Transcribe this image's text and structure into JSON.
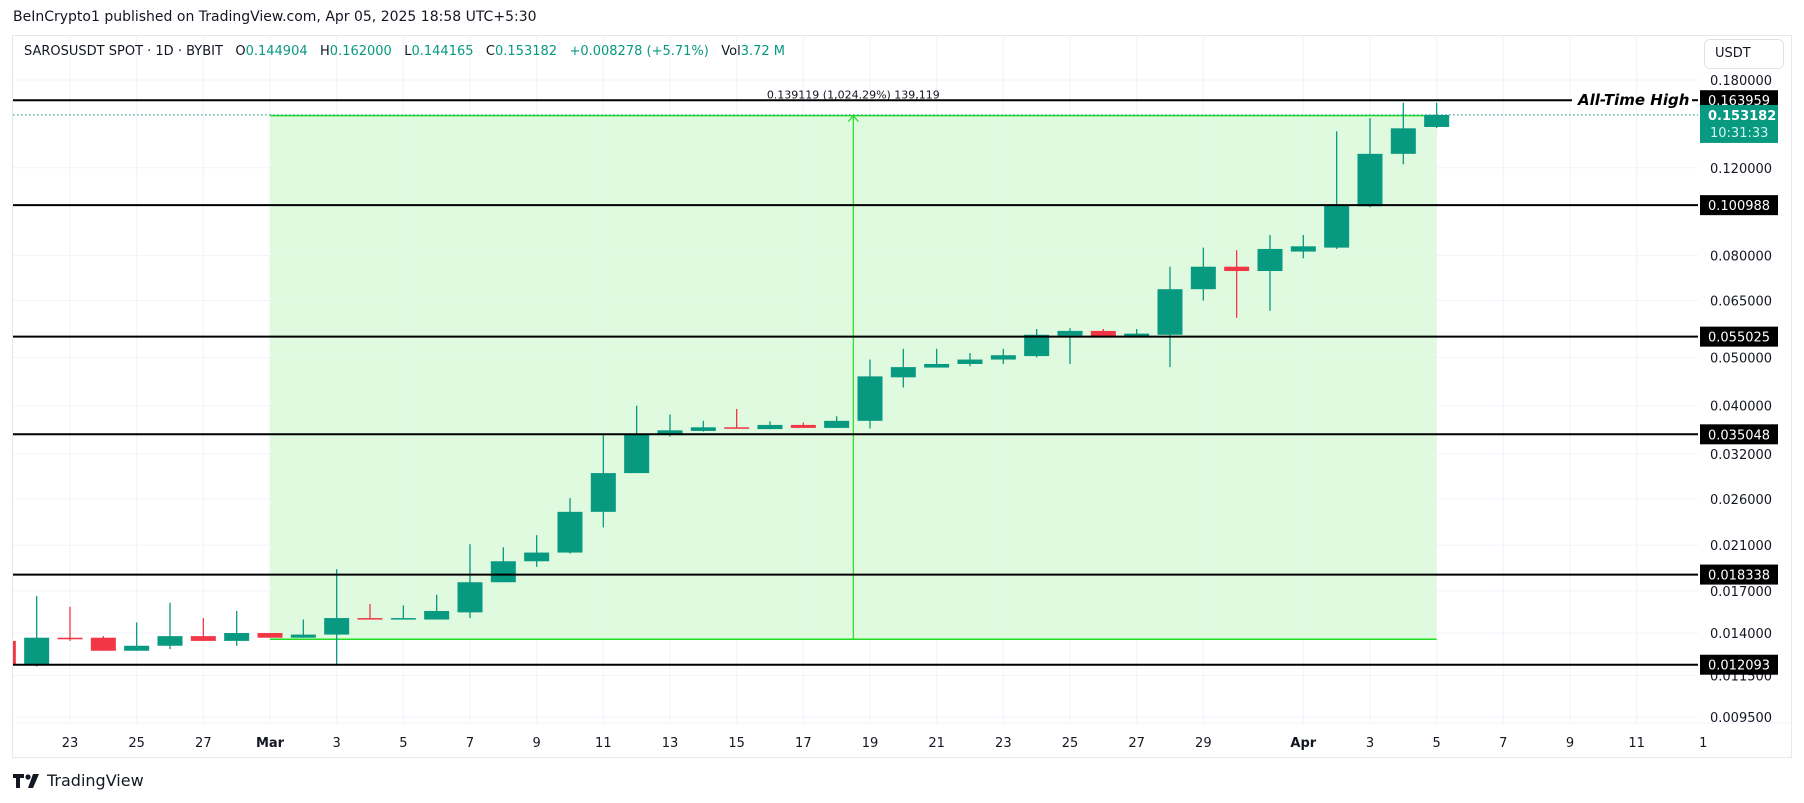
{
  "published": "BeInCrypto1 published on TradingView.com, Apr 05, 2025 18:58 UTC+5:30",
  "legend": {
    "symbol": "SAROSUSDT SPOT · 1D · BYBIT",
    "o_label": "O",
    "o": "0.144904",
    "h_label": "H",
    "h": "0.162000",
    "l_label": "L",
    "l": "0.144165",
    "c_label": "C",
    "c": "0.153182",
    "change": "+0.008278 (+5.71%)",
    "vol_label": "Vol",
    "vol": "3.72 M"
  },
  "currency_button": "USDT",
  "footer_logo": "TradingView",
  "colors": {
    "up": "#089981",
    "down": "#f23645",
    "range_fill": "#ddfadd",
    "range_line": "#22dd22",
    "level": "#000000"
  },
  "chart_data": {
    "type": "candlestick",
    "title": "SAROSUSDT SPOT · 1D · BYBIT",
    "yscale": "log",
    "ylim": [
      0.0095,
      0.18
    ],
    "y_ticks": [
      "0.180000",
      "0.120000",
      "0.080000",
      "0.065000",
      "0.050000",
      "0.040000",
      "0.032000",
      "0.026000",
      "0.021000",
      "0.017000",
      "0.014000",
      "0.011500",
      "0.009500"
    ],
    "x_ticks": [
      {
        "text": "23",
        "day": -6
      },
      {
        "text": "25",
        "day": -4
      },
      {
        "text": "27",
        "day": -2
      },
      {
        "text": "Mar",
        "day": 0,
        "bold": true
      },
      {
        "text": "3",
        "day": 2
      },
      {
        "text": "5",
        "day": 4
      },
      {
        "text": "7",
        "day": 6
      },
      {
        "text": "9",
        "day": 8
      },
      {
        "text": "11",
        "day": 10
      },
      {
        "text": "13",
        "day": 12
      },
      {
        "text": "15",
        "day": 14
      },
      {
        "text": "17",
        "day": 16
      },
      {
        "text": "19",
        "day": 18
      },
      {
        "text": "21",
        "day": 20
      },
      {
        "text": "23",
        "day": 22
      },
      {
        "text": "25",
        "day": 24
      },
      {
        "text": "27",
        "day": 26
      },
      {
        "text": "29",
        "day": 28
      },
      {
        "text": "Apr",
        "day": 31,
        "bold": true
      },
      {
        "text": "3",
        "day": 33
      },
      {
        "text": "5",
        "day": 35
      },
      {
        "text": "7",
        "day": 37
      },
      {
        "text": "9",
        "day": 39
      },
      {
        "text": "11",
        "day": 41
      },
      {
        "text": "1",
        "day": 43
      }
    ],
    "candles_start_date": "Feb 21",
    "candles": [
      [
        0.0135,
        0.0137,
        0.012,
        0.0121
      ],
      [
        0.0121,
        0.0166,
        0.012,
        0.0137
      ],
      [
        0.0137,
        0.0158,
        0.0135,
        0.0136
      ],
      [
        0.0137,
        0.0138,
        0.0129,
        0.0129
      ],
      [
        0.0129,
        0.0147,
        0.0129,
        0.0132
      ],
      [
        0.0132,
        0.0161,
        0.013,
        0.0138
      ],
      [
        0.0138,
        0.015,
        0.0135,
        0.0135
      ],
      [
        0.0135,
        0.0155,
        0.0132,
        0.014
      ],
      [
        0.014,
        0.014,
        0.0137,
        0.0137
      ],
      [
        0.0137,
        0.0149,
        0.0137,
        0.0139
      ],
      [
        0.0139,
        0.0188,
        0.0121,
        0.015
      ],
      [
        0.015,
        0.016,
        0.0149,
        0.0149
      ],
      [
        0.0149,
        0.0159,
        0.0149,
        0.015
      ],
      [
        0.0149,
        0.0167,
        0.0149,
        0.0155
      ],
      [
        0.0154,
        0.0211,
        0.015,
        0.0177
      ],
      [
        0.0177,
        0.0208,
        0.0177,
        0.0195
      ],
      [
        0.0195,
        0.022,
        0.019,
        0.0203
      ],
      [
        0.0203,
        0.0261,
        0.0202,
        0.0245
      ],
      [
        0.0245,
        0.0351,
        0.0228,
        0.0293
      ],
      [
        0.0293,
        0.04,
        0.0293,
        0.035
      ],
      [
        0.035,
        0.0384,
        0.0347,
        0.0357
      ],
      [
        0.0356,
        0.0373,
        0.0355,
        0.0362
      ],
      [
        0.0362,
        0.0394,
        0.036,
        0.036
      ],
      [
        0.0359,
        0.0372,
        0.0359,
        0.0366
      ],
      [
        0.0366,
        0.037,
        0.0361,
        0.0361
      ],
      [
        0.0361,
        0.0381,
        0.0361,
        0.0373
      ],
      [
        0.0373,
        0.0495,
        0.036,
        0.0458
      ],
      [
        0.0456,
        0.052,
        0.0435,
        0.0478
      ],
      [
        0.0477,
        0.052,
        0.0477,
        0.0485
      ],
      [
        0.0485,
        0.051,
        0.048,
        0.0495
      ],
      [
        0.0495,
        0.052,
        0.0485,
        0.0505
      ],
      [
        0.0503,
        0.057,
        0.05,
        0.0555
      ],
      [
        0.0553,
        0.0572,
        0.0485,
        0.0565
      ],
      [
        0.0565,
        0.057,
        0.0548,
        0.0548
      ],
      [
        0.0548,
        0.057,
        0.0548,
        0.0558
      ],
      [
        0.0555,
        0.076,
        0.0478,
        0.0685
      ],
      [
        0.0685,
        0.083,
        0.065,
        0.076
      ],
      [
        0.076,
        0.082,
        0.06,
        0.0745
      ],
      [
        0.0745,
        0.088,
        0.062,
        0.0825
      ],
      [
        0.0815,
        0.088,
        0.079,
        0.0835
      ],
      [
        0.083,
        0.142,
        0.0825,
        0.101
      ],
      [
        0.1005,
        0.151,
        0.1,
        0.128
      ],
      [
        0.128,
        0.162,
        0.122,
        0.144
      ],
      [
        0.144904,
        0.162,
        0.144165,
        0.153182
      ]
    ],
    "levels": [
      {
        "value": 0.163959,
        "label": "0.163959",
        "annotation": "All-Time High"
      },
      {
        "value": 0.100988,
        "label": "0.100988"
      },
      {
        "value": 0.055025,
        "label": "0.055025"
      },
      {
        "value": 0.035048,
        "label": "0.035048"
      },
      {
        "value": 0.018338,
        "label": "0.018338"
      },
      {
        "value": 0.012093,
        "label": "0.012093"
      }
    ],
    "current_price": {
      "value": 0.153182,
      "label": "0.153182",
      "countdown": "10:31:33"
    },
    "measure": {
      "from_day": 0,
      "to_day": 35,
      "from_price": 0.0136,
      "to_price": 0.1527,
      "label": "0.139119 (1,024.29%) 139,119"
    }
  }
}
